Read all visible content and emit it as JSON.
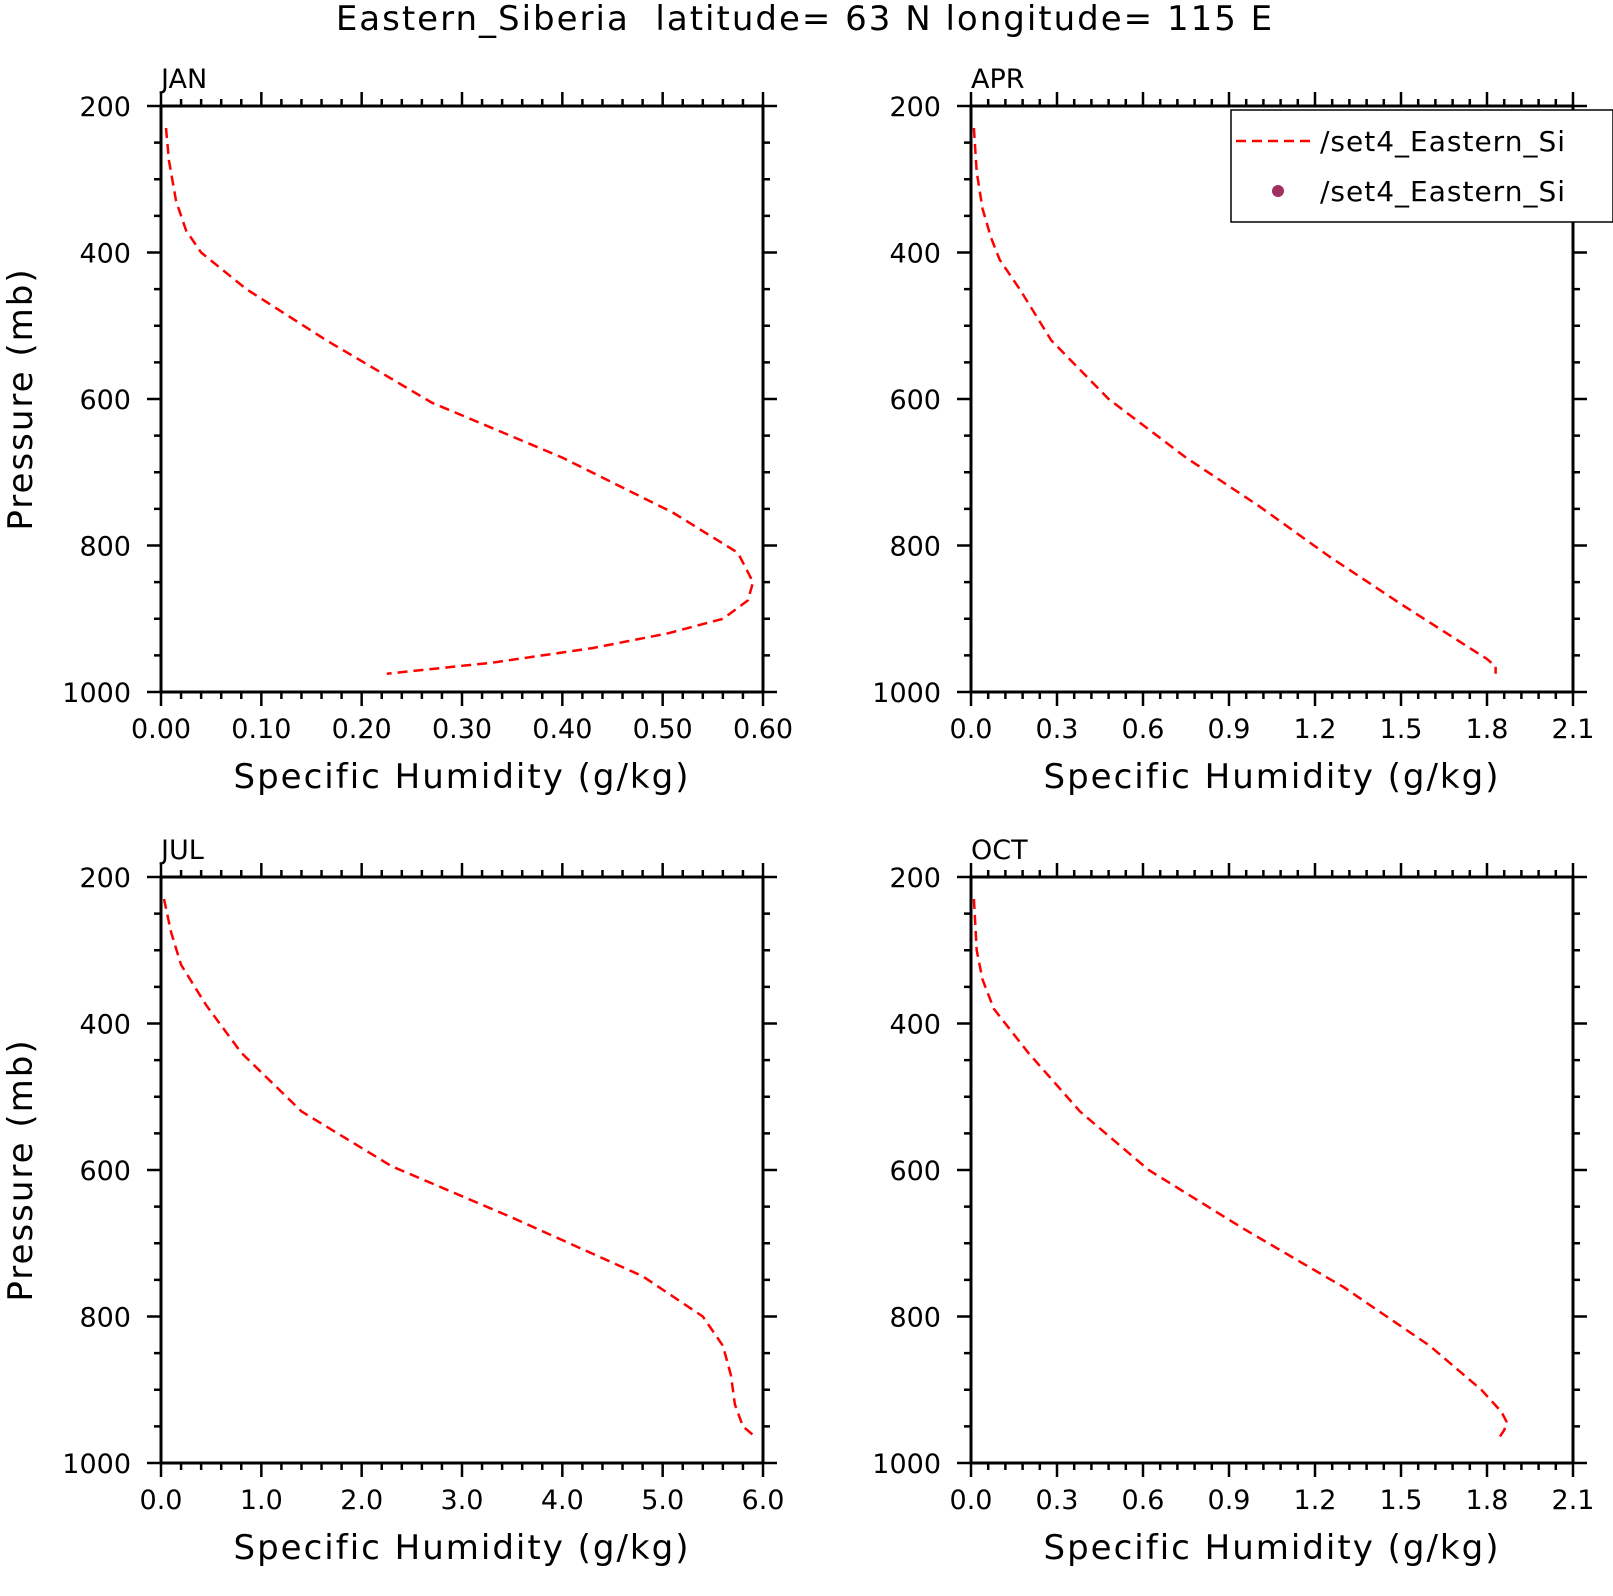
{
  "title": "Eastern_Siberia  latitude= 63 N longitude= 115 E",
  "colors": {
    "model_line": "#ff0000",
    "obs_marker": "#a03060"
  },
  "legend": {
    "entries": [
      {
        "label": "/set4_Eastern_Si",
        "style": "dashed-line"
      },
      {
        "label": "/set4_Eastern_Si",
        "style": "dot-marker"
      }
    ]
  },
  "chart_data": [
    {
      "type": "line",
      "panel_label": "JAN",
      "xlabel": "Specific Humidity (g/kg)",
      "ylabel": "Pressure (mb)",
      "xlim": [
        0,
        0.6
      ],
      "ylim": [
        200,
        1000
      ],
      "y_inverted": true,
      "xticks": [
        "0.00",
        "0.10",
        "0.20",
        "0.30",
        "0.40",
        "0.50",
        "0.60"
      ],
      "yticks": [
        "200",
        "400",
        "600",
        "800",
        "1000"
      ],
      "series": [
        {
          "x": [
            0.005,
            0.008,
            0.015,
            0.025,
            0.04,
            0.085,
            0.165,
            0.27,
            0.4,
            0.51,
            0.575,
            0.59,
            0.585,
            0.56,
            0.505,
            0.43,
            0.33,
            0.225
          ],
          "y": [
            230,
            275,
            330,
            370,
            400,
            450,
            520,
            605,
            680,
            755,
            810,
            850,
            875,
            900,
            920,
            940,
            960,
            975
          ]
        }
      ]
    },
    {
      "type": "line",
      "panel_label": "APR",
      "xlabel": "Specific Humidity (g/kg)",
      "ylabel": "",
      "xlim": [
        0,
        2.1
      ],
      "ylim": [
        200,
        1000
      ],
      "y_inverted": true,
      "xticks": [
        "0.0",
        "0.3",
        "0.6",
        "0.9",
        "1.2",
        "1.5",
        "1.8",
        "2.1"
      ],
      "yticks": [
        "200",
        "400",
        "600",
        "800",
        "1000"
      ],
      "series": [
        {
          "x": [
            0.01,
            0.02,
            0.04,
            0.07,
            0.1,
            0.17,
            0.28,
            0.48,
            0.75,
            1.0,
            1.25,
            1.5,
            1.7,
            1.8,
            1.83,
            1.83
          ],
          "y": [
            230,
            290,
            340,
            380,
            410,
            450,
            520,
            600,
            680,
            745,
            815,
            880,
            930,
            955,
            965,
            975
          ]
        }
      ]
    },
    {
      "type": "line",
      "panel_label": "JUL",
      "xlabel": "Specific Humidity (g/kg)",
      "ylabel": "Pressure (mb)",
      "xlim": [
        0,
        6.0
      ],
      "ylim": [
        200,
        1000
      ],
      "y_inverted": true,
      "xticks": [
        "0.0",
        "1.0",
        "2.0",
        "3.0",
        "4.0",
        "5.0",
        "6.0"
      ],
      "yticks": [
        "200",
        "400",
        "600",
        "800",
        "1000"
      ],
      "series": [
        {
          "x": [
            0.03,
            0.1,
            0.2,
            0.45,
            0.8,
            1.4,
            2.3,
            3.5,
            4.8,
            5.4,
            5.6,
            5.68,
            5.72,
            5.8,
            5.93
          ],
          "y": [
            230,
            275,
            320,
            375,
            440,
            520,
            595,
            665,
            745,
            800,
            840,
            880,
            920,
            950,
            965
          ]
        }
      ]
    },
    {
      "type": "line",
      "panel_label": "OCT",
      "xlabel": "Specific Humidity (g/kg)",
      "ylabel": "",
      "xlim": [
        0,
        2.1
      ],
      "ylim": [
        200,
        1000
      ],
      "y_inverted": true,
      "xticks": [
        "0.0",
        "0.3",
        "0.6",
        "0.9",
        "1.2",
        "1.5",
        "1.8",
        "2.1"
      ],
      "yticks": [
        "200",
        "400",
        "600",
        "800",
        "1000"
      ],
      "series": [
        {
          "x": [
            0.01,
            0.02,
            0.04,
            0.08,
            0.2,
            0.38,
            0.62,
            0.95,
            1.3,
            1.6,
            1.78,
            1.85,
            1.87,
            1.86,
            1.84
          ],
          "y": [
            230,
            300,
            340,
            380,
            440,
            520,
            600,
            680,
            760,
            840,
            900,
            930,
            945,
            955,
            967
          ]
        }
      ]
    }
  ]
}
